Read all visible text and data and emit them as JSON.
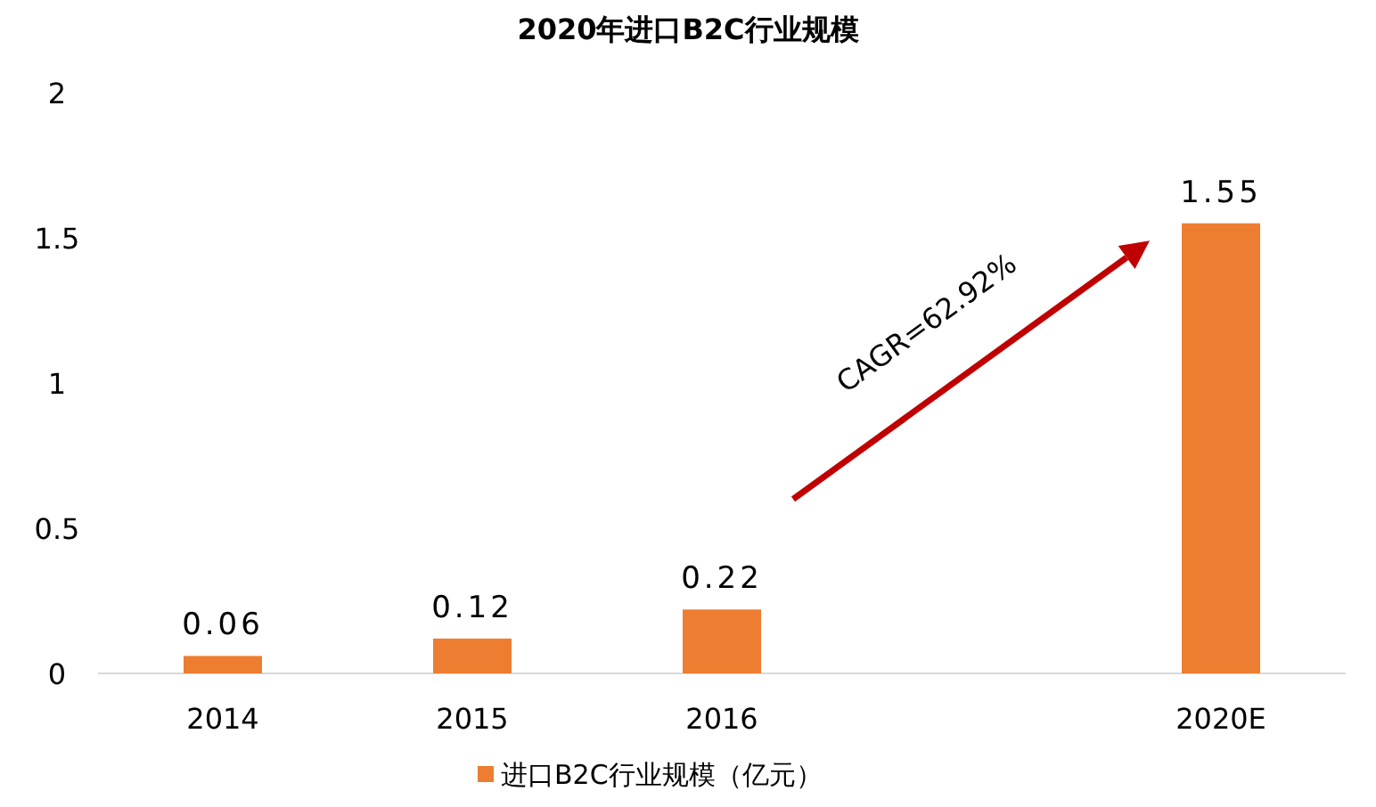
{
  "chart_data": {
    "type": "bar",
    "title": "2020年进口B2C行业规模",
    "categories": [
      "2014",
      "2015",
      "2016",
      null,
      "2020E"
    ],
    "series": [
      {
        "name": "进口B2C行业规模（亿元）",
        "color": "#ed7d31",
        "values": [
          0.06,
          0.12,
          0.22,
          null,
          1.55
        ]
      }
    ],
    "ylim": [
      0,
      2
    ],
    "yticks": [
      0,
      0.5,
      1,
      1.5,
      2
    ],
    "grid": false,
    "legend": "bottom",
    "data_labels": true,
    "annotations": [
      "CAGR=62.92%"
    ]
  }
}
